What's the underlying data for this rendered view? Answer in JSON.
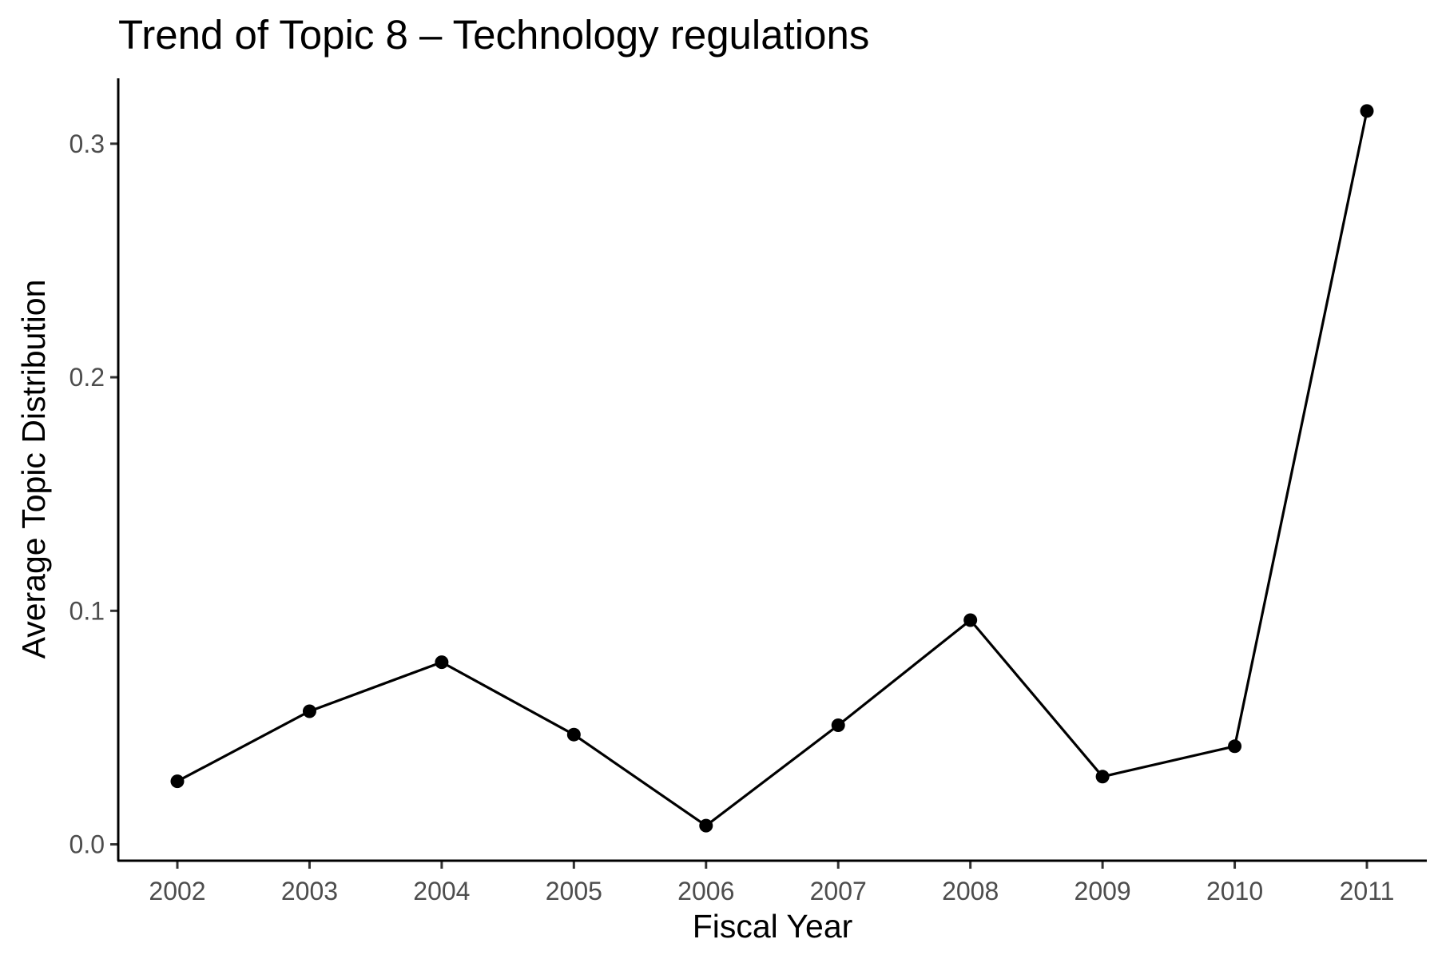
{
  "chart_data": {
    "type": "line",
    "title": "Trend of Topic 8 – Technology regulations",
    "xlabel": "Fiscal Year",
    "ylabel": "Average Topic Distribution",
    "categories": [
      "2002",
      "2003",
      "2004",
      "2005",
      "2006",
      "2007",
      "2008",
      "2009",
      "2010",
      "2011"
    ],
    "series": [
      {
        "values": [
          0.027,
          0.057,
          0.078,
          0.047,
          0.008,
          0.051,
          0.096,
          0.029,
          0.042,
          0.314
        ]
      }
    ],
    "yticks": [
      "0.0",
      "0.1",
      "0.2",
      "0.3"
    ],
    "ylim": [
      -0.007,
      0.328
    ],
    "grid": false,
    "colors": {
      "line": "#000000",
      "point": "#000000",
      "tick_text": "#4d4d4d"
    }
  }
}
